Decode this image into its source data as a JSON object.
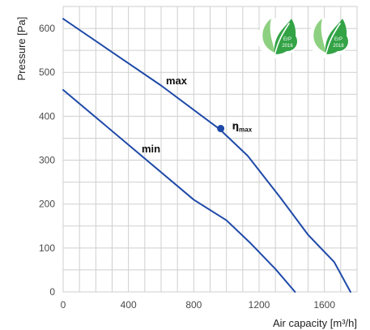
{
  "colors": {
    "curve": "#1f4aa8",
    "grid": "#cfcfcf",
    "badge_fill": "#33a346",
    "badge_leaf_light": "#8ed081"
  },
  "badges": [
    {
      "label": "ErP",
      "year": "2016",
      "icon": "leaf-badge-icon"
    },
    {
      "label": "ErP",
      "year": "2018",
      "icon": "leaf-badge-icon"
    }
  ],
  "chart_data": {
    "type": "line",
    "xlabel": "Air capacity [m³/h]",
    "ylabel": "Pressure [Pa]",
    "xlim": [
      0,
      1800
    ],
    "ylim": [
      0,
      650
    ],
    "xticks": [
      0,
      400,
      800,
      1200,
      1600
    ],
    "yticks": [
      0,
      100,
      200,
      300,
      400,
      500,
      600
    ],
    "grid": true,
    "series": [
      {
        "name": "max",
        "x": [
          0,
          600,
          960,
          1130,
          1330,
          1500,
          1660,
          1760
        ],
        "y": [
          622,
          470,
          370,
          310,
          215,
          130,
          68,
          0
        ]
      },
      {
        "name": "min",
        "x": [
          0,
          400,
          800,
          1000,
          1150,
          1300,
          1420
        ],
        "y": [
          460,
          335,
          210,
          163,
          110,
          52,
          0
        ]
      }
    ],
    "annotations": [
      {
        "text": "η",
        "subscript": "max",
        "x": 965,
        "y": 372
      }
    ]
  }
}
